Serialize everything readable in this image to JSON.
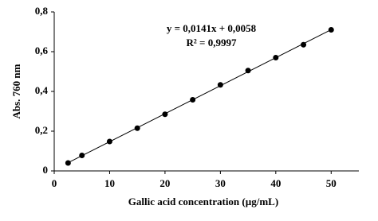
{
  "chart_data": {
    "type": "scatter",
    "x_label": "Gallic acid concentration (µg/mL)",
    "y_label": "Abs. 760 nm",
    "annotations": [
      "y = 0,0141x + 0,0058",
      "R² = 0,9997"
    ],
    "trendline": {
      "slope": 0.0141,
      "intercept": 0.0058
    },
    "x": [
      2.5,
      5,
      10,
      15,
      20,
      25,
      30,
      35,
      40,
      45,
      50
    ],
    "values": [
      0.04,
      0.078,
      0.148,
      0.215,
      0.285,
      0.358,
      0.433,
      0.505,
      0.57,
      0.635,
      0.71
    ],
    "color": "#000000",
    "xlim": [
      0,
      55
    ],
    "xticks": [
      0,
      10,
      20,
      30,
      40,
      50
    ],
    "ylim": [
      0,
      0.8
    ],
    "yticks": [
      0,
      {
        "value": 0.2,
        "label": "0,2"
      },
      {
        "value": 0.4,
        "label": "0,4"
      },
      {
        "value": 0.6,
        "label": "0,6"
      },
      {
        "value": 0.8,
        "label": "0,8"
      }
    ],
    "grid": false
  }
}
